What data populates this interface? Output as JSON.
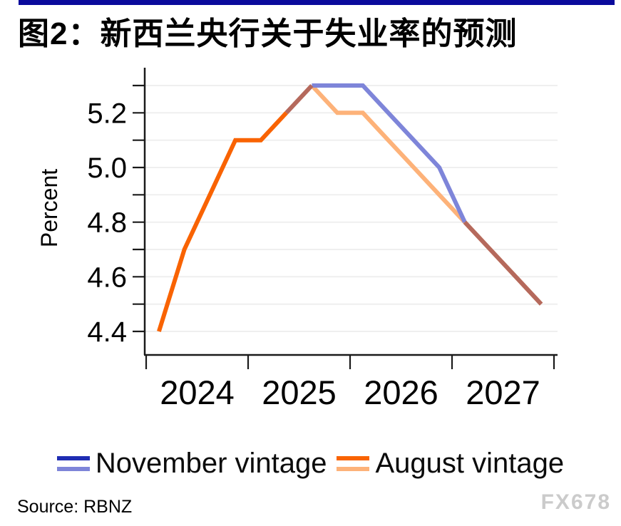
{
  "page": {
    "title": "图2：新西兰央行关于失业率的预测",
    "source": "Source: RBNZ",
    "watermark": "FX678"
  },
  "legend": {
    "items": [
      {
        "label": "November vintage"
      },
      {
        "label": "August vintage"
      }
    ]
  },
  "chart_data": {
    "type": "line",
    "title": "图2：新西兰央行关于失业率的预测",
    "xlabel": "",
    "ylabel": "Percent",
    "x_note": "decimal years; quarterly observations plotted at mid-quarter",
    "axes": {
      "xlim": [
        2023.99,
        2028.04
      ],
      "ylim": [
        4.35,
        5.42
      ],
      "y_grid": [
        4.4,
        4.5,
        4.6,
        4.7,
        4.8,
        4.9,
        5.0,
        5.1,
        5.2,
        5.3
      ],
      "y_tick_labels": [
        5.2,
        5.0,
        4.8,
        4.6,
        4.4
      ],
      "x_ticks": [
        2024,
        2025,
        2026,
        2027,
        2028
      ],
      "x_year_labels": [
        2024,
        2025,
        2026,
        2027
      ],
      "grid": "horizontal only",
      "legend_position": "bottom center"
    },
    "series": [
      {
        "name": "November vintage",
        "x": [
          2025.375,
          2025.625,
          2025.875,
          2026.125,
          2026.375,
          2026.625,
          2026.875,
          2027.125,
          2027.375,
          2027.625,
          2027.875
        ],
        "values": [
          5.2,
          5.3,
          5.3,
          5.3,
          5.2,
          5.1,
          5.0,
          4.8,
          4.7,
          4.6,
          4.5
        ]
      },
      {
        "name": "August vintage",
        "x": [
          2024.125,
          2024.375,
          2024.625,
          2024.875,
          2025.125,
          2025.375,
          2025.625,
          2025.875,
          2026.125,
          2026.375,
          2026.625,
          2026.875,
          2027.125,
          2027.375,
          2027.625,
          2027.875
        ],
        "values": [
          4.4,
          4.7,
          4.9,
          5.1,
          5.1,
          5.2,
          5.3,
          5.2,
          5.2,
          5.1,
          5.0,
          4.9,
          4.8,
          4.7,
          4.6,
          4.5
        ]
      }
    ],
    "colors": {
      "november_history": "#1F2DB3",
      "november_forecast": "#7E85D9",
      "august_history": "#F96302",
      "august_forecast": "#FDB279",
      "overlap": "#B5695C",
      "gridline": "#EFEFEF",
      "axis": "#1A1A1A",
      "top_bar": "#0A0A9C",
      "watermark_gray": "#CBCBCB"
    },
    "render_segments": [
      {
        "series_index": 1,
        "from": 2025.625,
        "to": 2027.875,
        "color": "august_forecast",
        "name": "august-forecast-line"
      },
      {
        "series_index": 0,
        "from": 2025.625,
        "to": 2027.125,
        "color": "november_forecast",
        "name": "november-forecast-line"
      },
      {
        "series_index": 1,
        "from": 2027.125,
        "to": 2027.875,
        "color": "overlap",
        "name": "overlap-tail-line"
      },
      {
        "series_index": 1,
        "from": 2025.375,
        "to": 2025.625,
        "color": "overlap",
        "name": "overlap-rise-line"
      },
      {
        "series_index": 1,
        "from": 2024.125,
        "to": 2025.375,
        "color": "august_history",
        "name": "august-history-line"
      }
    ]
  }
}
